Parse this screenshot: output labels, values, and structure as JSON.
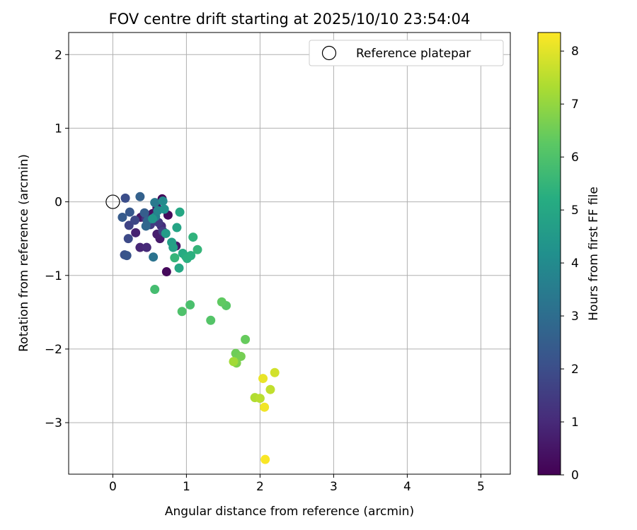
{
  "chart_data": {
    "type": "scatter",
    "title": "FOV centre drift starting at 2025/10/10 23:54:04",
    "xlabel": "Angular distance from reference (arcmin)",
    "ylabel": "Rotation from reference (arcmin)",
    "xlim": [
      -0.6,
      5.4
    ],
    "ylim": [
      -3.7,
      2.3
    ],
    "xticks": [
      0,
      1,
      2,
      3,
      4,
      5
    ],
    "yticks": [
      2,
      1,
      0,
      -1,
      -2,
      -3
    ],
    "xtick_labels": [
      "0",
      "1",
      "2",
      "3",
      "4",
      "5"
    ],
    "ytick_labels": [
      "2",
      "1",
      "0",
      "−1",
      "−2",
      "−3"
    ],
    "grid": true,
    "legend": {
      "position": "top-right",
      "label": "Reference platepar"
    },
    "reference_point": {
      "x": 0,
      "y": 0
    },
    "colorbar": {
      "label": "Hours from first FF file",
      "min": 0,
      "max": 8.35,
      "ticks": [
        0,
        1,
        2,
        3,
        4,
        5,
        6,
        7,
        8
      ],
      "tick_labels": [
        "0",
        "1",
        "2",
        "3",
        "4",
        "5",
        "6",
        "7",
        "8"
      ],
      "colormap": "viridis"
    },
    "points": [
      {
        "x": 0.67,
        "y": 0.04,
        "h": 0.1
      },
      {
        "x": 0.75,
        "y": -0.18,
        "h": 0.2
      },
      {
        "x": 0.54,
        "y": -0.16,
        "h": 0.3
      },
      {
        "x": 0.6,
        "y": -0.08,
        "h": 0.4
      },
      {
        "x": 0.38,
        "y": -0.21,
        "h": 0.5
      },
      {
        "x": 0.64,
        "y": -0.5,
        "h": 0.6
      },
      {
        "x": 0.6,
        "y": -0.44,
        "h": 0.7
      },
      {
        "x": 0.31,
        "y": -0.42,
        "h": 0.8
      },
      {
        "x": 0.37,
        "y": -0.62,
        "h": 0.9
      },
      {
        "x": 0.46,
        "y": -0.62,
        "h": 1.0
      },
      {
        "x": 0.73,
        "y": -0.95,
        "h": 0.2
      },
      {
        "x": 0.86,
        "y": -0.6,
        "h": 0.6
      },
      {
        "x": 0.66,
        "y": -0.33,
        "h": 1.1
      },
      {
        "x": 0.45,
        "y": -0.23,
        "h": 1.3
      },
      {
        "x": 0.51,
        "y": -0.31,
        "h": 1.5
      },
      {
        "x": 0.62,
        "y": -0.28,
        "h": 1.4
      },
      {
        "x": 0.68,
        "y": -0.4,
        "h": 1.6
      },
      {
        "x": 0.22,
        "y": -0.32,
        "h": 1.7
      },
      {
        "x": 0.3,
        "y": -0.25,
        "h": 1.8
      },
      {
        "x": 0.21,
        "y": -0.5,
        "h": 1.9
      },
      {
        "x": 0.17,
        "y": 0.05,
        "h": 2.0
      },
      {
        "x": 0.16,
        "y": -0.72,
        "h": 2.1
      },
      {
        "x": 0.19,
        "y": -0.73,
        "h": 2.2
      },
      {
        "x": 0.23,
        "y": -0.14,
        "h": 2.3
      },
      {
        "x": 0.13,
        "y": -0.21,
        "h": 2.4
      },
      {
        "x": 0.43,
        "y": -0.15,
        "h": 2.5
      },
      {
        "x": 0.37,
        "y": 0.07,
        "h": 2.6
      },
      {
        "x": 0.47,
        "y": -0.26,
        "h": 2.7
      },
      {
        "x": 0.45,
        "y": -0.33,
        "h": 2.8
      },
      {
        "x": 0.55,
        "y": -0.75,
        "h": 3.2
      },
      {
        "x": 0.57,
        "y": -0.01,
        "h": 3.4
      },
      {
        "x": 0.58,
        "y": -0.2,
        "h": 3.6
      },
      {
        "x": 0.61,
        "y": -0.12,
        "h": 3.8
      },
      {
        "x": 0.68,
        "y": 0.01,
        "h": 4.0
      },
      {
        "x": 0.7,
        "y": -0.1,
        "h": 4.2
      },
      {
        "x": 0.54,
        "y": -0.23,
        "h": 4.4
      },
      {
        "x": 0.72,
        "y": -0.43,
        "h": 4.6
      },
      {
        "x": 0.8,
        "y": -0.55,
        "h": 4.7
      },
      {
        "x": 0.82,
        "y": -0.62,
        "h": 4.8
      },
      {
        "x": 0.87,
        "y": -0.35,
        "h": 4.9
      },
      {
        "x": 0.91,
        "y": -0.14,
        "h": 5.0
      },
      {
        "x": 0.9,
        "y": -0.9,
        "h": 5.0
      },
      {
        "x": 0.95,
        "y": -0.7,
        "h": 5.1
      },
      {
        "x": 0.99,
        "y": -0.74,
        "h": 5.2
      },
      {
        "x": 1.01,
        "y": -0.77,
        "h": 5.3
      },
      {
        "x": 1.06,
        "y": -0.73,
        "h": 5.3
      },
      {
        "x": 1.09,
        "y": -0.48,
        "h": 5.4
      },
      {
        "x": 1.15,
        "y": -0.65,
        "h": 5.5
      },
      {
        "x": 0.84,
        "y": -0.76,
        "h": 5.5
      },
      {
        "x": 0.57,
        "y": -1.19,
        "h": 5.8
      },
      {
        "x": 1.05,
        "y": -1.4,
        "h": 5.9
      },
      {
        "x": 0.94,
        "y": -1.49,
        "h": 6.0
      },
      {
        "x": 1.33,
        "y": -1.61,
        "h": 6.1
      },
      {
        "x": 1.54,
        "y": -1.41,
        "h": 6.2
      },
      {
        "x": 1.48,
        "y": -1.36,
        "h": 6.3
      },
      {
        "x": 1.8,
        "y": -1.87,
        "h": 6.4
      },
      {
        "x": 1.67,
        "y": -2.06,
        "h": 6.5
      },
      {
        "x": 1.74,
        "y": -2.1,
        "h": 6.6
      },
      {
        "x": 1.68,
        "y": -2.19,
        "h": 6.7
      },
      {
        "x": 1.64,
        "y": -2.17,
        "h": 7.2
      },
      {
        "x": 1.93,
        "y": -2.66,
        "h": 7.4
      },
      {
        "x": 2.0,
        "y": -2.67,
        "h": 7.5
      },
      {
        "x": 2.14,
        "y": -2.55,
        "h": 7.6
      },
      {
        "x": 2.2,
        "y": -2.32,
        "h": 7.8
      },
      {
        "x": 2.04,
        "y": -2.4,
        "h": 8.1
      },
      {
        "x": 2.06,
        "y": -2.79,
        "h": 8.2
      },
      {
        "x": 2.07,
        "y": -3.5,
        "h": 8.3
      }
    ]
  }
}
